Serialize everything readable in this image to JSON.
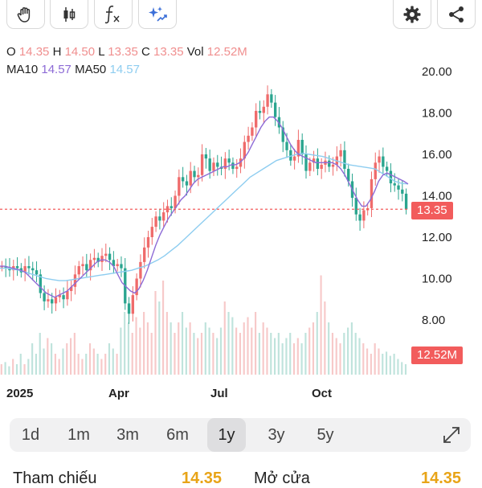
{
  "toolbar": {
    "left_buttons": [
      "hand-icon",
      "candlestick-icon",
      "function-icon",
      "ai-sparkle-icon"
    ],
    "right_buttons": [
      "gear-icon",
      "share-icon"
    ]
  },
  "ohlc": {
    "o_label": "O",
    "o_value": "14.35",
    "h_label": "H",
    "h_value": "14.50",
    "l_label": "L",
    "l_value": "13.35",
    "c_label": "C",
    "c_value": "13.35",
    "vol_label": "Vol",
    "vol_value": "12.52M"
  },
  "ma": {
    "ma10_label": "MA10",
    "ma10_value": "14.57",
    "ma50_label": "MA50",
    "ma50_value": "14.57"
  },
  "colors": {
    "up": "#ef6b6b",
    "down": "#2aa58f",
    "ma10": "#8d6bd6",
    "ma50": "#8ecdf0",
    "price_line": "#f25c5c",
    "accent": "#e8a417"
  },
  "chart_data": {
    "type": "candlestick",
    "y_ticks": [
      "20.00",
      "18.00",
      "16.00",
      "14.00",
      "12.00",
      "10.00",
      "8.00"
    ],
    "x_ticks": [
      "2025",
      "Apr",
      "Jul",
      "Oct"
    ],
    "ylim": [
      6,
      21
    ],
    "current_price": "13.35",
    "current_volume": "12.52M",
    "close_series": [
      10.6,
      10.5,
      10.4,
      10.6,
      10.5,
      10.3,
      10.6,
      10.5,
      10.4,
      10.2,
      9.3,
      8.9,
      9.0,
      8.8,
      9.1,
      9.2,
      9.0,
      9.4,
      9.6,
      10.2,
      10.6,
      10.7,
      10.4,
      10.9,
      11.0,
      10.8,
      11.1,
      11.2,
      10.9,
      10.6,
      10.7,
      10.5,
      8.8,
      8.3,
      9.2,
      10.0,
      10.8,
      11.5,
      12.0,
      12.5,
      13.0,
      12.8,
      13.2,
      13.5,
      13.4,
      14.0,
      14.9,
      14.7,
      14.5,
      15.2,
      14.9,
      15.0,
      16.0,
      15.8,
      15.2,
      15.6,
      15.4,
      15.3,
      15.8,
      15.6,
      15.3,
      15.4,
      15.8,
      16.6,
      16.9,
      17.3,
      18.1,
      18.0,
      18.3,
      18.9,
      18.5,
      17.8,
      17.3,
      16.6,
      16.2,
      15.7,
      15.9,
      16.7,
      16.0,
      15.2,
      15.6,
      15.8,
      15.3,
      15.5,
      15.7,
      15.4,
      15.5,
      15.9,
      16.2,
      15.3,
      14.7,
      13.9,
      13.1,
      12.8,
      13.3,
      13.4,
      14.8,
      15.6,
      15.9,
      15.4,
      15.2,
      14.6,
      14.5,
      14.3,
      14.1,
      13.35
    ],
    "ma10": [
      10.6,
      10.6,
      10.55,
      10.5,
      10.45,
      10.4,
      10.3,
      10.1,
      9.9,
      9.7,
      9.5,
      9.3,
      9.2,
      9.1,
      9.2,
      9.3,
      9.4,
      9.6,
      9.8,
      10.0,
      10.2,
      10.4,
      10.6,
      10.8,
      10.9,
      10.9,
      10.8,
      10.6,
      10.2,
      9.8,
      9.6,
      9.4,
      9.3,
      9.5,
      9.9,
      10.4,
      11.0,
      11.6,
      12.1,
      12.5,
      12.9,
      13.2,
      13.5,
      13.8,
      14.0,
      14.3,
      14.6,
      14.8,
      14.9,
      15.0,
      15.1,
      15.2,
      15.3,
      15.4,
      15.4,
      15.5,
      15.5,
      15.6,
      15.8,
      16.1,
      16.5,
      16.9,
      17.3,
      17.6,
      17.8,
      17.8,
      17.6,
      17.3,
      16.9,
      16.5,
      16.2,
      16.0,
      15.9,
      15.8,
      15.7,
      15.6,
      15.6,
      15.6,
      15.6,
      15.6,
      15.5,
      15.3,
      15.0,
      14.6,
      14.2,
      13.8,
      13.5,
      13.5,
      13.8,
      14.2,
      14.7,
      15.0,
      15.1,
      15.0,
      14.9,
      14.8,
      14.7,
      14.57
    ],
    "ma50": [
      10.5,
      10.5,
      10.45,
      10.4,
      10.3,
      10.2,
      10.1,
      10.0,
      9.95,
      9.9,
      9.9,
      9.95,
      10.0,
      10.05,
      10.1,
      10.15,
      10.2,
      10.25,
      10.3,
      10.35,
      10.4,
      10.5,
      10.6,
      10.75,
      10.9,
      11.1,
      11.35,
      11.6,
      11.9,
      12.2,
      12.5,
      12.8,
      13.1,
      13.4,
      13.7,
      14.0,
      14.3,
      14.6,
      14.9,
      15.1,
      15.3,
      15.5,
      15.7,
      15.8,
      15.9,
      16.0,
      16.05,
      16.0,
      15.95,
      15.9,
      15.8,
      15.7,
      15.6,
      15.5,
      15.45,
      15.4,
      15.35,
      15.3,
      15.1,
      14.9,
      14.7,
      14.6,
      14.57
    ],
    "volume_rel": [
      0.1,
      0.12,
      0.08,
      0.15,
      0.1,
      0.2,
      0.1,
      0.15,
      0.3,
      0.2,
      0.4,
      0.25,
      0.35,
      0.3,
      0.2,
      0.15,
      0.25,
      0.3,
      0.35,
      0.4,
      0.2,
      0.15,
      0.2,
      0.3,
      0.25,
      0.2,
      0.15,
      0.2,
      0.3,
      0.25,
      0.2,
      0.45,
      0.6,
      0.5,
      0.4,
      0.55,
      0.45,
      0.6,
      0.5,
      0.4,
      0.8,
      0.7,
      0.9,
      0.6,
      0.5,
      0.4,
      0.5,
      0.6,
      0.45,
      0.5,
      0.4,
      0.35,
      0.4,
      0.5,
      0.45,
      0.4,
      0.35,
      0.45,
      0.7,
      0.6,
      0.55,
      0.45,
      0.4,
      0.5,
      0.55,
      0.45,
      0.6,
      0.4,
      0.5,
      0.45,
      0.4,
      0.35,
      0.4,
      0.3,
      0.35,
      0.4,
      0.3,
      0.35,
      0.3,
      0.4,
      0.45,
      0.5,
      0.6,
      0.95,
      0.7,
      0.5,
      0.4,
      0.35,
      0.3,
      0.4,
      0.45,
      0.5,
      0.4,
      0.35,
      0.3,
      0.25,
      0.2,
      0.3,
      0.25,
      0.2,
      0.22,
      0.18,
      0.2,
      0.15,
      0.12,
      0.1
    ]
  },
  "range_tabs": {
    "items": [
      "1d",
      "1m",
      "3m",
      "6m",
      "1y",
      "3y",
      "5y"
    ],
    "active": "1y"
  },
  "bottom": {
    "ref_label": "Tham chiếu",
    "ref_value": "14.35",
    "open_label": "Mở cửa",
    "open_value": "14.35"
  }
}
